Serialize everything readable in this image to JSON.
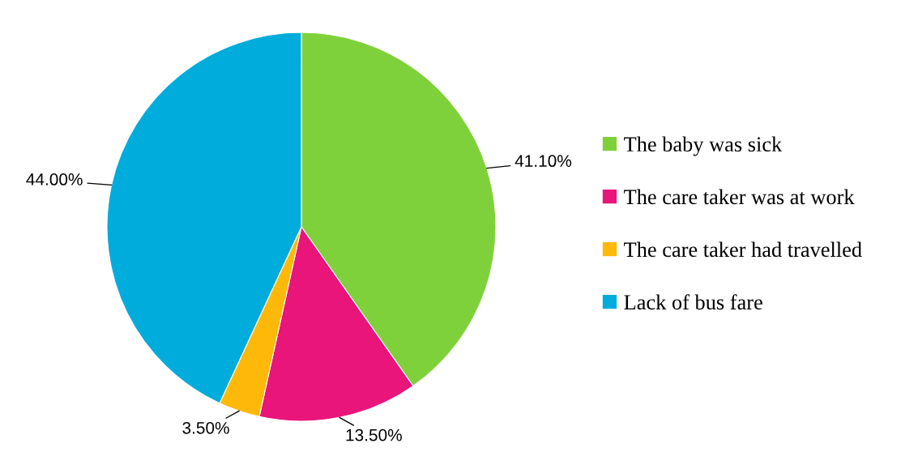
{
  "chart_data": {
    "type": "pie",
    "categories": [
      "The baby was sick",
      "The care taker was at work",
      "The care taker had travelled",
      "Lack of bus fare"
    ],
    "values": [
      41.1,
      13.5,
      3.5,
      44.0
    ],
    "colors": [
      "#7ed13b",
      "#e9157a",
      "#feb80a",
      "#00acdc"
    ],
    "value_labels": [
      "41.10%",
      "13.50%",
      "3.50%",
      "44.00%"
    ],
    "legend": "right"
  }
}
